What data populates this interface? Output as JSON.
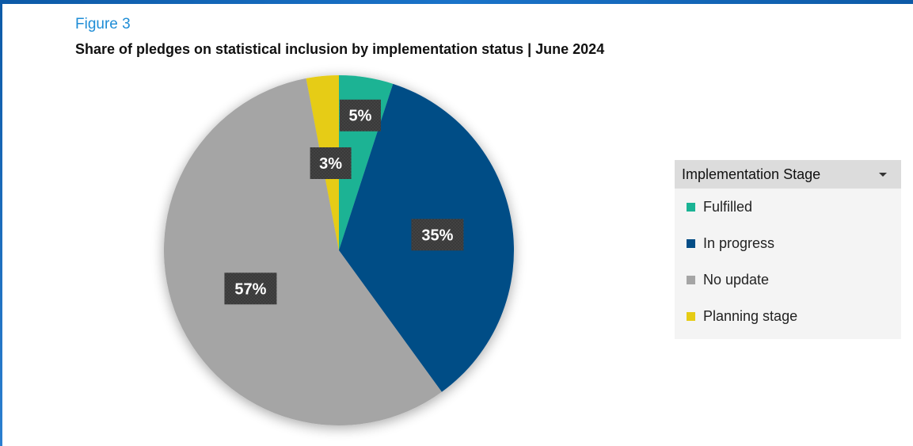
{
  "figure_label": "Figure 3",
  "title": "Share of pledges on statistical inclusion by implementation status | June 2024",
  "chart_data": {
    "type": "pie",
    "title": "Share of pledges on statistical inclusion by implementation status | June 2024",
    "slices": [
      {
        "name": "Fulfilled",
        "value": 5,
        "label": "5%",
        "color": "#1ab394"
      },
      {
        "name": "In progress",
        "value": 35,
        "label": "35%",
        "color": "#044d86"
      },
      {
        "name": "No update",
        "value": 57,
        "label": "57%",
        "color": "#a5a5a5"
      },
      {
        "name": "Planning stage",
        "value": 3,
        "label": "3%",
        "color": "#e6cc14"
      }
    ],
    "legend_placement": "right"
  },
  "legend": {
    "header": "Implementation Stage",
    "items": [
      {
        "label": "Fulfilled",
        "color": "#1ab394"
      },
      {
        "label": "In progress",
        "color": "#044d86"
      },
      {
        "label": "No update",
        "color": "#a5a5a5"
      },
      {
        "label": "Planning stage",
        "color": "#e6cc14"
      }
    ]
  }
}
